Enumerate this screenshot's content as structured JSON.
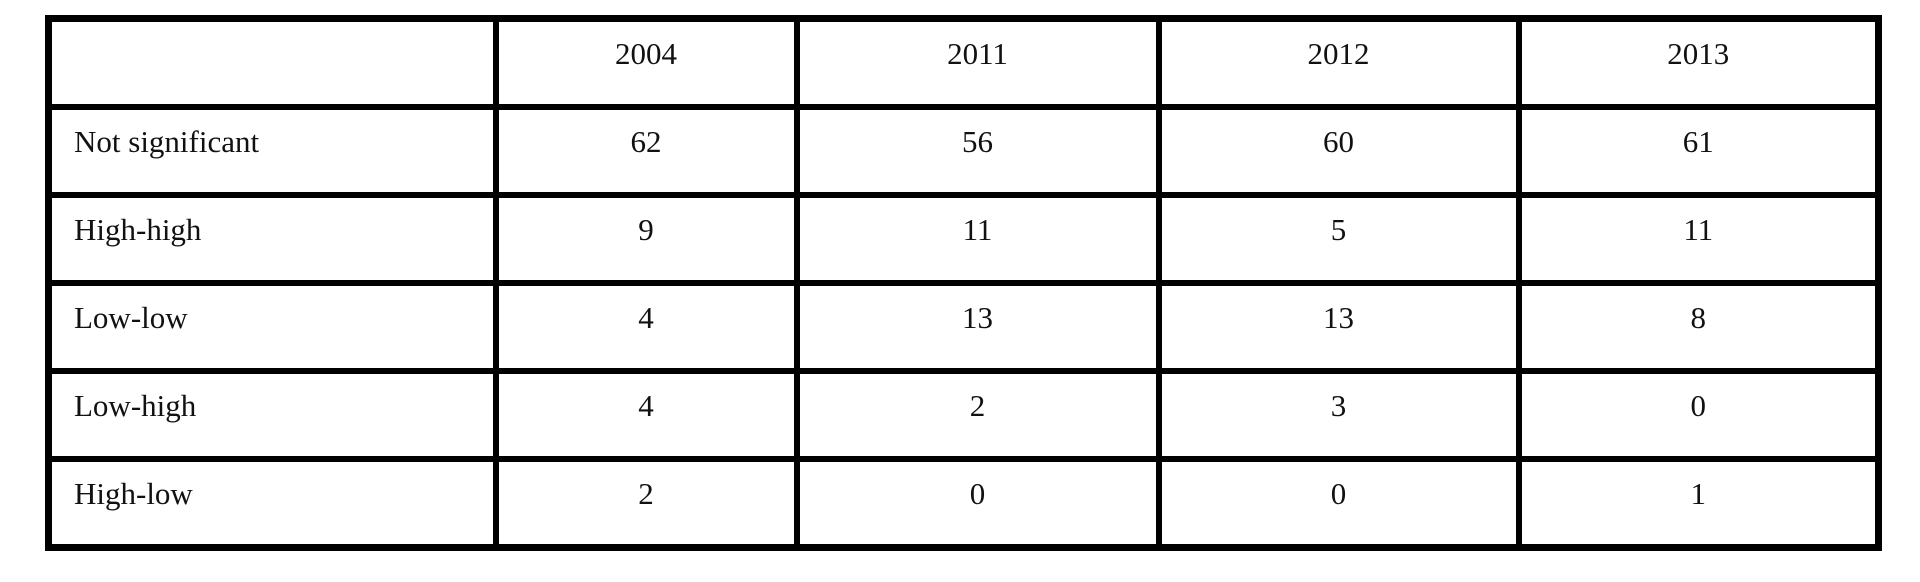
{
  "chart_data": {
    "type": "table",
    "columns": [
      "",
      "2004",
      "2011",
      "2012",
      "2013"
    ],
    "rows": [
      {
        "label": "Not significant",
        "values": [
          "62",
          "56",
          "60",
          "61"
        ]
      },
      {
        "label": "High-high",
        "values": [
          "9",
          "11",
          "5",
          "11"
        ]
      },
      {
        "label": "Low-low",
        "values": [
          "4",
          "13",
          "13",
          "8"
        ]
      },
      {
        "label": "Low-high",
        "values": [
          "4",
          "2",
          "3",
          "0"
        ]
      },
      {
        "label": "High-low",
        "values": [
          "2",
          "0",
          "0",
          "1"
        ]
      }
    ]
  }
}
